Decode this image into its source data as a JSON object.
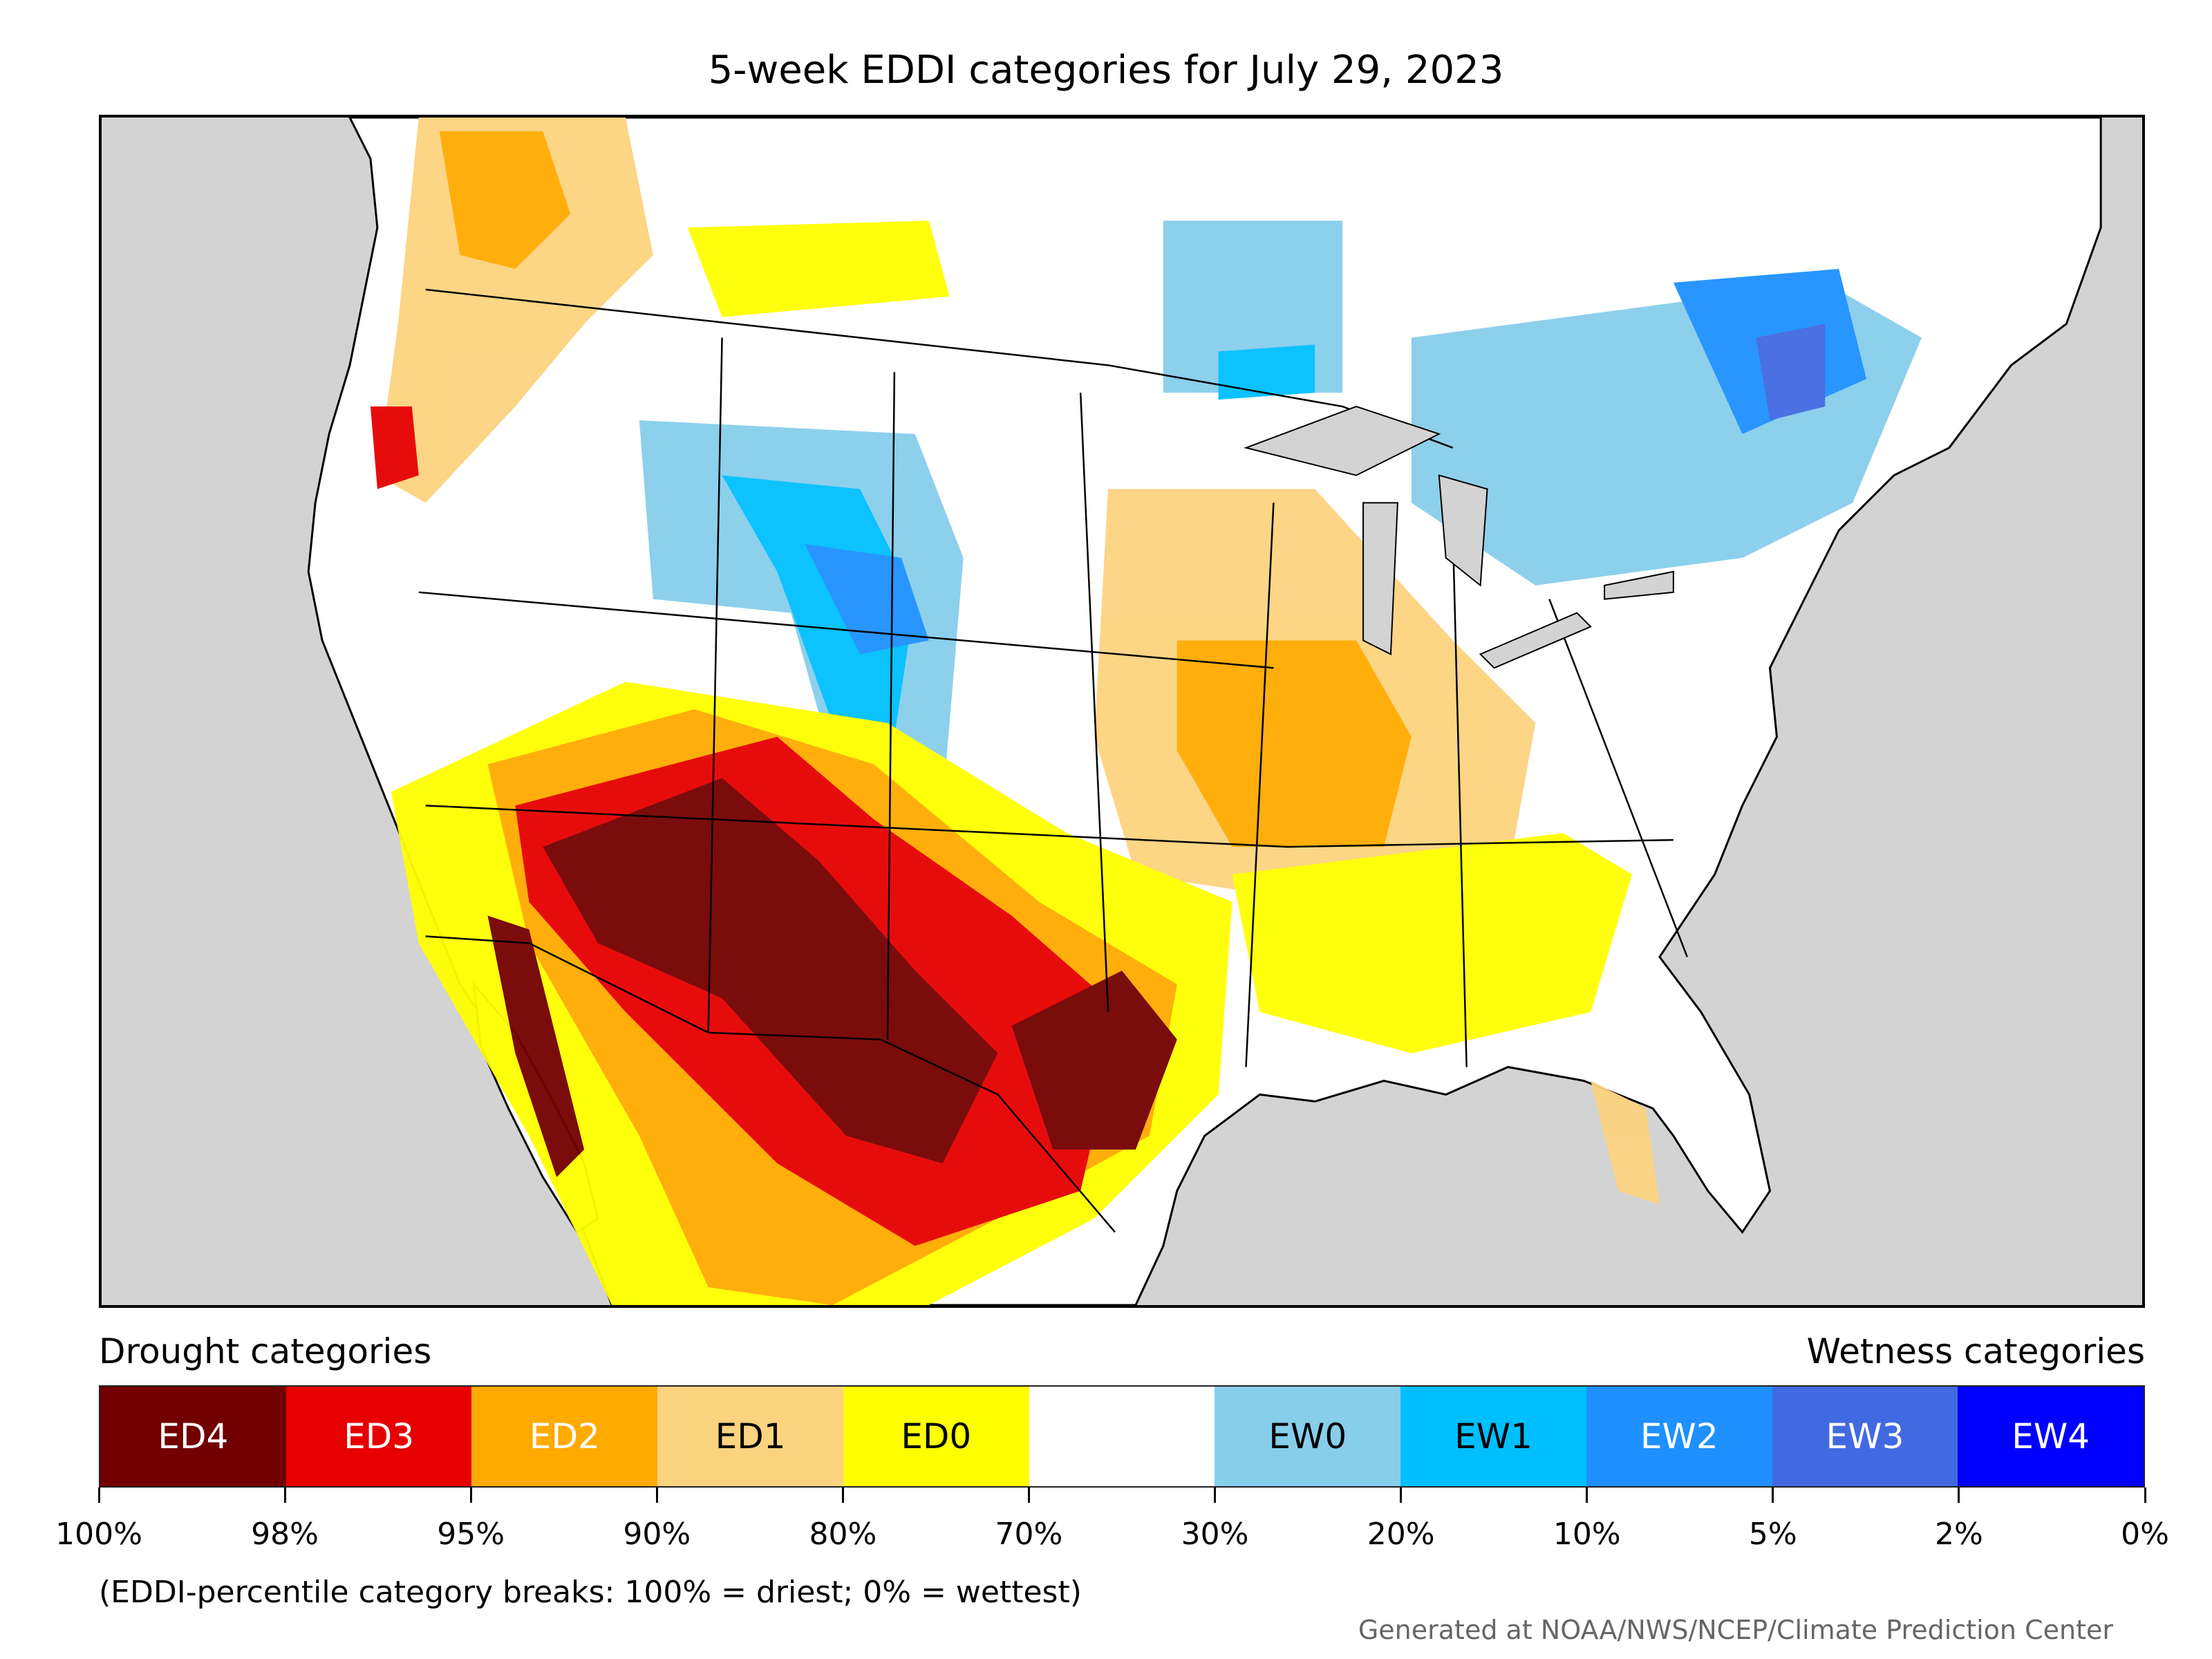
{
  "title": "5-week EDDI categories for July 29, 2023",
  "legend": {
    "drought_label": "Drought categories",
    "wetness_label": "Wetness categories",
    "categories": [
      {
        "label": "ED4",
        "color": "#730000",
        "text_color": "#ffffff"
      },
      {
        "label": "ED3",
        "color": "#e60000",
        "text_color": "#ffffff"
      },
      {
        "label": "ED2",
        "color": "#ffaa00",
        "text_color": "#ffffff"
      },
      {
        "label": "ED1",
        "color": "#fcd37f",
        "text_color": "#000000"
      },
      {
        "label": "ED0",
        "color": "#ffff00",
        "text_color": "#000000"
      },
      {
        "label": "",
        "color": "#ffffff",
        "text_color": "#000000"
      },
      {
        "label": "EW0",
        "color": "#87ceeb",
        "text_color": "#000000"
      },
      {
        "label": "EW1",
        "color": "#00bfff",
        "text_color": "#000000"
      },
      {
        "label": "EW2",
        "color": "#1e90ff",
        "text_color": "#ffffff"
      },
      {
        "label": "EW3",
        "color": "#4169e1",
        "text_color": "#ffffff"
      },
      {
        "label": "EW4",
        "color": "#0000ff",
        "text_color": "#ffffff"
      }
    ],
    "breaks": [
      "100%",
      "98%",
      "95%",
      "90%",
      "80%",
      "70%",
      "30%",
      "20%",
      "10%",
      "5%",
      "2%",
      "0%"
    ]
  },
  "note": "(EDDI-percentile category breaks: 100% = driest; 0% = wettest)",
  "credit": "Generated at NOAA/NWS/NCEP/Climate Prediction Center",
  "colors": {
    "ocean": "#d3d3d3",
    "land": "#ffffff",
    "borders": "#000000"
  }
}
